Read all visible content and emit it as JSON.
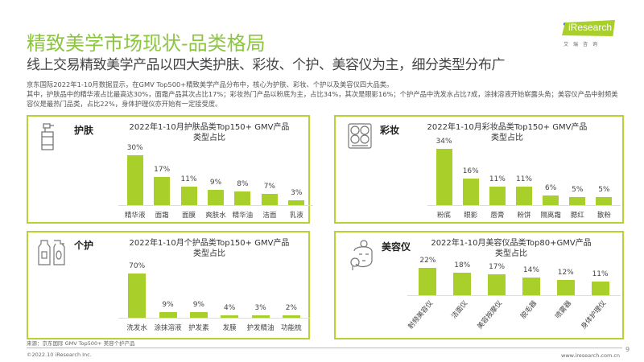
{
  "header": {
    "title": "精致美学市场现状-品类格局",
    "subtitle": "线上交易精致美学产品以四大类护肤、彩妆、个护、美容仪为主，细分类型分布广",
    "description": [
      "京东国际2022年1-10月数据显示，在GMV Top500+精致美学产品分布中，核心为护肤、彩妆、个护以及美容仪四大品类。",
      "其中，护肤品中的精华液占比最高达30%，面霜产品其次占比17%；彩妆热门产品以粉底为主，占比34%，其次是眼影16%；个护产品中洗发水占比7成，涂抹溶液开始崭露头角；美容仪产品中射频美容仪是最热门品类，占比22%，身体护理仪亦开始有一定接受度。"
    ]
  },
  "logo": {
    "text": "iResearch",
    "sub": "艾瑞咨询"
  },
  "colors": {
    "accent": "#8cc63f",
    "bar": "#a8cf2a",
    "border": "#b5d334"
  },
  "chart_data": [
    {
      "id": "skincare",
      "type": "bar",
      "name": "护肤",
      "icon": "pump-bottle-icon",
      "title": "2022年1-10月护肤品类Top150+ GMV产品",
      "title2": "类型占比",
      "categories": [
        "精华液",
        "面霜",
        "面膜",
        "爽肤水",
        "精华油",
        "洁面",
        "乳液"
      ],
      "values": [
        30,
        17,
        11,
        9,
        8,
        7,
        3
      ],
      "labels": [
        "30%",
        "17%",
        "11%",
        "9%",
        "8%",
        "7%",
        "3%"
      ],
      "unit": "%"
    },
    {
      "id": "makeup",
      "type": "bar",
      "name": "彩妆",
      "icon": "palette-icon",
      "title": "2022年1-10月彩妆品类Top150+ GMV产品",
      "title2": "类型占比",
      "categories": [
        "粉底",
        "眼影",
        "唇膏",
        "粉饼",
        "隔离霜",
        "腮红",
        "散粉"
      ],
      "values": [
        34,
        16,
        11,
        11,
        6,
        5,
        5
      ],
      "labels": [
        "34%",
        "16%",
        "11%",
        "11%",
        "6%",
        "5%",
        "5%"
      ],
      "unit": "%"
    },
    {
      "id": "personal",
      "type": "bar",
      "name": "个护",
      "icon": "bottles-icon",
      "title": "2022年1-10月个护品类Top150+ GMV产品",
      "title2": "类型占比",
      "categories": [
        "洗发水",
        "涂抹溶液",
        "护发素",
        "发膜",
        "护发精油",
        "功能梳"
      ],
      "values": [
        70,
        9,
        9,
        4,
        3,
        2
      ],
      "labels": [
        "70%",
        "9%",
        "9%",
        "4%",
        "3%",
        "2%"
      ],
      "unit": "%"
    },
    {
      "id": "device",
      "type": "bar",
      "name": "美容仪",
      "icon": "face-device-icon",
      "title": "2022年1-10月美容仪品类Top80+GMV产品",
      "title2": "类型占比",
      "categories": [
        "射频美容仪",
        "洁面仪",
        "美容按摩仪",
        "脱毛器",
        "喷雾器",
        "身体护理仪"
      ],
      "values": [
        22,
        18,
        17,
        14,
        12,
        11
      ],
      "labels": [
        "22%",
        "18%",
        "17%",
        "14%",
        "12%",
        "11%"
      ],
      "unit": "%"
    }
  ],
  "footer": {
    "source": "来源：京东国际 GMV Top500+ 美容个护产品",
    "copyright": "©2022.10 iResearch Inc.",
    "site": "www.iresearch.com.cn",
    "page": "9"
  }
}
